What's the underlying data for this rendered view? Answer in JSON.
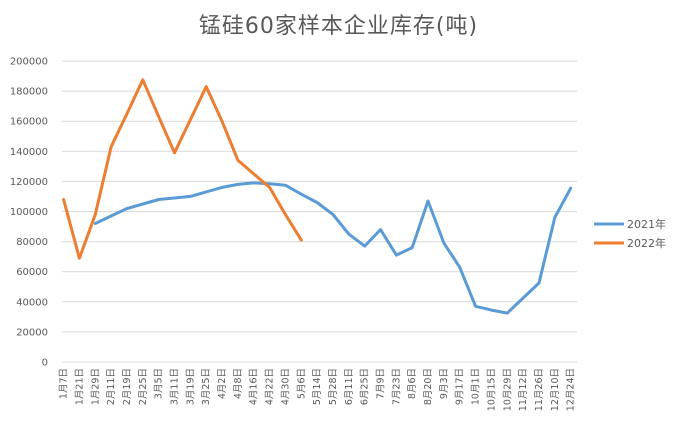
{
  "chart_data": {
    "type": "line",
    "title": "锰硅60家样本企业库存(吨)",
    "xlabel": "",
    "ylabel": "",
    "ylim": [
      0,
      200000
    ],
    "yticks": [
      0,
      20000,
      40000,
      60000,
      80000,
      100000,
      120000,
      140000,
      160000,
      180000,
      200000
    ],
    "grid": true,
    "legend_position": "right",
    "categories": [
      "1月7日",
      "1月21日",
      "1月29日",
      "2月11日",
      "2月19日",
      "2月25日",
      "3月5日",
      "3月11日",
      "3月19日",
      "3月25日",
      "4月2日",
      "4月8日",
      "4月16日",
      "4月22日",
      "4月30日",
      "5月6日",
      "5月14日",
      "5月28日",
      "6月11日",
      "6月25日",
      "7月9日",
      "7月23日",
      "8月6日",
      "8月20日",
      "9月3日",
      "9月17日",
      "10月1日",
      "10月15日",
      "10月29日",
      "11月12日",
      "11月26日",
      "12月10日",
      "12月24日"
    ],
    "series": [
      {
        "name": "2021年",
        "color": "#5B9BD5",
        "values": [
          null,
          null,
          92000,
          97000,
          102000,
          105000,
          108000,
          109000,
          110000,
          113000,
          116000,
          118000,
          119000,
          118500,
          117500,
          111500,
          106000,
          98000,
          85000,
          77000,
          88000,
          71000,
          76000,
          107000,
          79000,
          63000,
          37000,
          34500,
          32500,
          42500,
          52500,
          96000,
          115500
        ]
      },
      {
        "name": "2022年",
        "color": "#ED7D31",
        "values": [
          108000,
          69000,
          98000,
          143000,
          165000,
          187500,
          163000,
          139000,
          161000,
          183000,
          160000,
          134000,
          125000,
          116000,
          98000,
          81000,
          null,
          null,
          null,
          null,
          null,
          null,
          null,
          null,
          null,
          null,
          null,
          null,
          null,
          null,
          null,
          null,
          null
        ]
      }
    ]
  }
}
